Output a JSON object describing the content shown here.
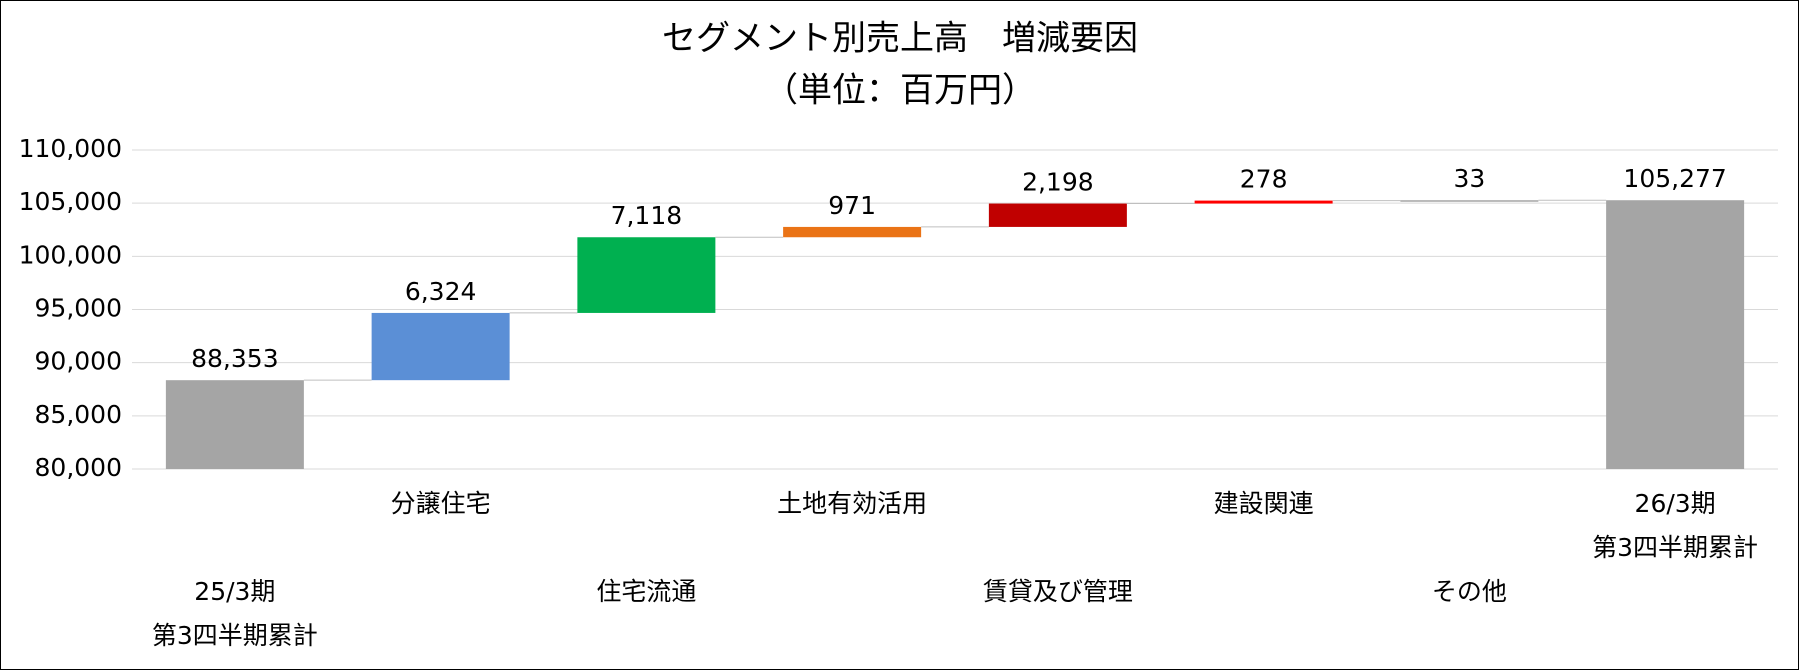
{
  "chart_data": {
    "type": "waterfall",
    "title": "セグメント別売上高　増減要因",
    "subtitle": "（単位：百万円）",
    "categories": [
      "25/3期\n第3四半期累計",
      "分譲住宅",
      "住宅流通",
      "土地有効活用",
      "賃貸及び管理",
      "建設関連",
      "その他",
      "26/3期\n第3四半期累計"
    ],
    "values": [
      88353,
      6324,
      7118,
      971,
      2198,
      278,
      33,
      105277
    ],
    "value_labels": [
      "88,353",
      "6,324",
      "7,118",
      "971",
      "2,198",
      "278",
      "33",
      "105,277"
    ],
    "colors": [
      "#a5a5a5",
      "#5b8fd6",
      "#00b050",
      "#ea7316",
      "#c00000",
      "#ff0000",
      "#a5a5a5",
      "#a5a5a5"
    ],
    "ylim": [
      80000,
      110000
    ],
    "yticks": [
      {
        "value": 80000,
        "label": "80,000"
      },
      {
        "value": 85000,
        "label": "85,000"
      },
      {
        "value": 90000,
        "label": "90,000"
      },
      {
        "value": 95000,
        "label": "95,000"
      },
      {
        "value": 100000,
        "label": "100,000"
      },
      {
        "value": 105000,
        "label": "105,000"
      },
      {
        "value": 110000,
        "label": "110,000"
      }
    ],
    "grid": true
  }
}
